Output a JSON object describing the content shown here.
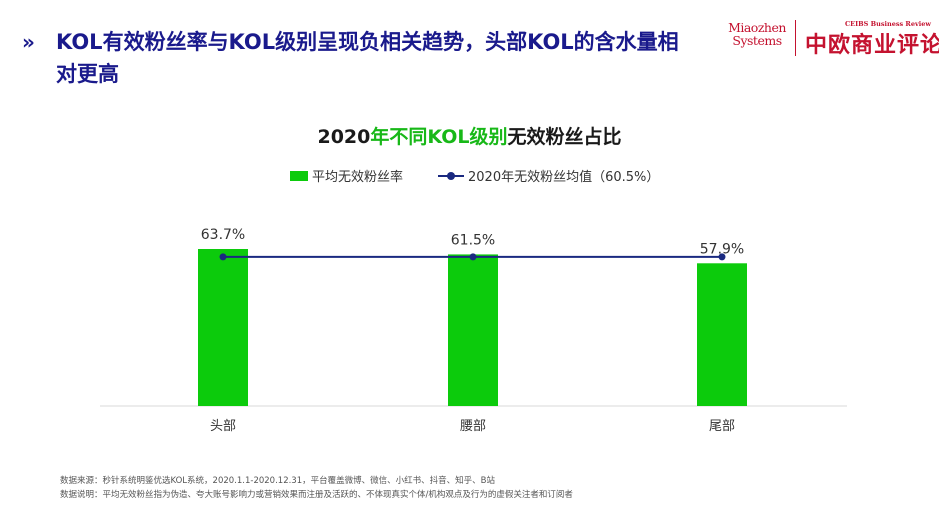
{
  "header": {
    "marker": "»",
    "headline": "KOL有效粉丝率与KOL级别呈现负相关趋势，头部KOL的含水量相对更高"
  },
  "logos": {
    "miaozhen_line1": "Miaozhen",
    "miaozhen_line2": "Systems",
    "ceibs_en": "CEIBS Business Review",
    "ceibs_cn": "中欧商业评论"
  },
  "chart_data": {
    "type": "bar",
    "title_parts": [
      "2020",
      "年不同KOL级别",
      "无效粉丝占比"
    ],
    "categories": [
      "头部",
      "腰部",
      "尾部"
    ],
    "series": [
      {
        "name": "平均无效粉丝率",
        "type": "bar",
        "values": [
          63.7,
          61.5,
          57.9
        ],
        "labels": [
          "63.7%",
          "61.5%",
          "57.9%"
        ],
        "color": "#0ccb0c"
      },
      {
        "name": "2020年无效粉丝均值（60.5%）",
        "type": "line",
        "values": [
          60.5,
          60.5,
          60.5
        ],
        "color": "#1a2980"
      }
    ],
    "ylim": [
      0,
      70
    ],
    "grid": false,
    "legend_position": "top",
    "title_highlight_color": "#18b818"
  },
  "footnotes": {
    "source": "数据来源：秒针系统明鉴优选KOL系统，2020.1.1-2020.12.31，平台覆盖微博、微信、小红书、抖音、知乎、B站",
    "note": "数据说明：平均无效粉丝指为伪造、夸大账号影响力或营销效果而注册及活跃的、不体现真实个体/机构观点及行为的虚假关注者和订阅者"
  }
}
